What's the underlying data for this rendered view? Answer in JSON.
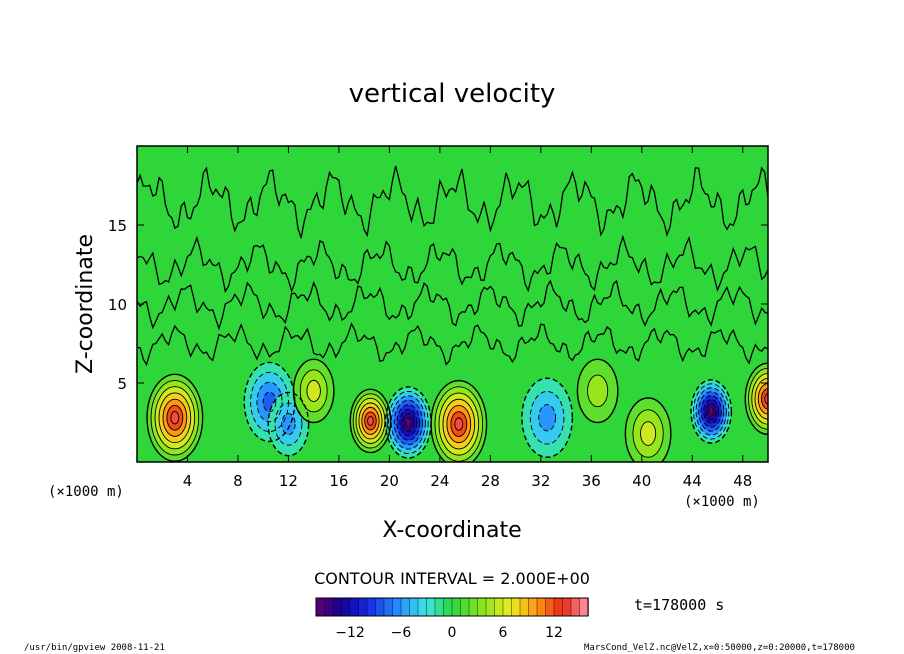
{
  "chart_data": {
    "type": "heatmap",
    "title": "vertical velocity",
    "xlabel": "X-coordinate",
    "ylabel": "Z-coordinate",
    "x_unit_left": "(×1000 m)",
    "x_unit_right": "(×1000 m)",
    "xlim": [
      0,
      50
    ],
    "ylim": [
      0,
      20
    ],
    "xticks": [
      "4",
      "8",
      "12",
      "16",
      "20",
      "24",
      "28",
      "32",
      "36",
      "40",
      "44",
      "48"
    ],
    "yticks": [
      "5",
      "10",
      "15"
    ],
    "contour_interval": "CONTOUR INTERVAL = 2.000E+00",
    "time_label": "t=178000 s",
    "colorbar_ticks": [
      "−12",
      "−6",
      "0",
      "6",
      "12"
    ],
    "colorbar_range": [
      -16,
      16
    ],
    "cells": [
      {
        "x": 3,
        "z": 2.8,
        "w": 2.2,
        "value": 14
      },
      {
        "x": 10.5,
        "z": 3.8,
        "w": 2.0,
        "value": -8
      },
      {
        "x": 12,
        "z": 2.4,
        "w": 1.6,
        "value": -6
      },
      {
        "x": 18.5,
        "z": 2.6,
        "w": 1.6,
        "value": 13
      },
      {
        "x": 21.5,
        "z": 2.5,
        "w": 1.8,
        "value": -15
      },
      {
        "x": 25.5,
        "z": 2.4,
        "w": 2.2,
        "value": 14
      },
      {
        "x": 32.5,
        "z": 2.8,
        "w": 2.0,
        "value": -5
      },
      {
        "x": 45.5,
        "z": 3.2,
        "w": 1.6,
        "value": -15
      },
      {
        "x": 50,
        "z": 4.0,
        "w": 1.8,
        "value": 13
      },
      {
        "x": 14,
        "z": 4.5,
        "w": 1.6,
        "value": 5
      },
      {
        "x": 40.5,
        "z": 1.8,
        "w": 1.8,
        "value": 5
      },
      {
        "x": 36.5,
        "z": 4.5,
        "w": 1.6,
        "value": 4
      }
    ]
  },
  "footer": {
    "left": "/usr/bin/gpview   2008-11-21",
    "right": "MarsCond_VelZ.nc@VelZ,x=0:50000,z=0:20000,t=178000"
  },
  "colors": {
    "background": "#22d022",
    "frame": "#000000"
  }
}
